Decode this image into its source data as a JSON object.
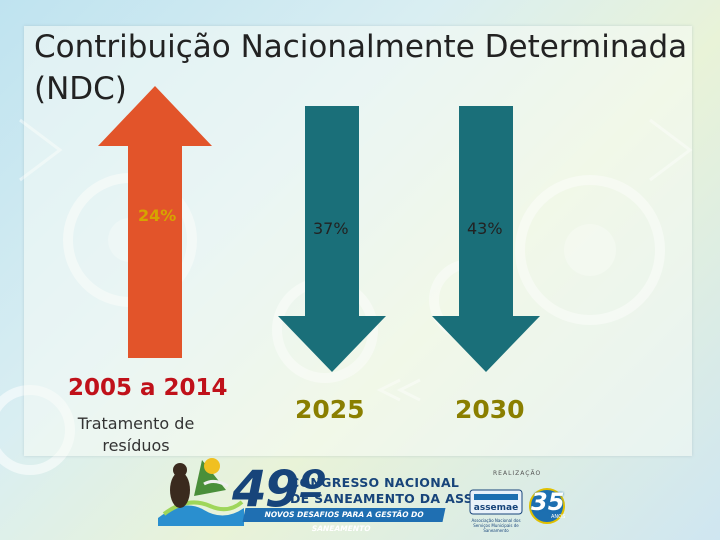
{
  "slide": {
    "title": "Contribuição Nacionalmente Determinada (NDC)"
  },
  "columns": [
    {
      "percent": "24%",
      "year": "2005 a 2014",
      "note": "Tratamento de resíduos",
      "direction": "up",
      "color": "#e2542a"
    },
    {
      "percent": "37%",
      "year": "2025",
      "direction": "down",
      "color": "#1a6f79"
    },
    {
      "percent": "43%",
      "year": "2030",
      "direction": "down",
      "color": "#1a6f79"
    }
  ],
  "footer": {
    "congress_number": "49º",
    "congress_line1": "CONGRESSO NACIONAL",
    "congress_line2": "DE SANEAMENTO DA ASSEMAE",
    "congress_tagline": "NOVOS DESAFIOS PARA A GESTÃO DO SANEAMENTO",
    "realizacao": "REALIZAÇÃO",
    "assemae_name": "assemae",
    "assemae_tagline": "Associação Nacional dos Serviços Municipais de Saneamento",
    "anniversary_number": "35",
    "anniversary_label": "ANOS"
  },
  "colors": {
    "up_arrow": "#e2542a",
    "down_arrow": "#1a6f79",
    "year_red": "#c0111a",
    "year_olive": "#8a7f00",
    "pct_gold": "#d6a400",
    "congress_blue": "#17447a"
  }
}
